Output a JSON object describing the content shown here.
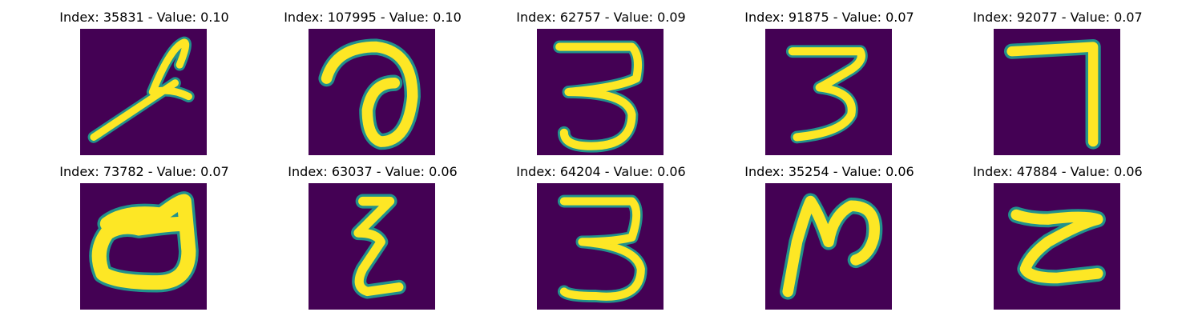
{
  "panels": [
    {
      "title": "Index: 35831 - Value: 0.10",
      "glyph": "script-l-glyph"
    },
    {
      "title": "Index: 107995 - Value: 0.10",
      "glyph": "curl-loop-glyph"
    },
    {
      "title": "Index: 62757 - Value: 0.09",
      "glyph": "digit-3-glyph"
    },
    {
      "title": "Index: 91875 - Value: 0.07",
      "glyph": "digit-3-glyph"
    },
    {
      "title": "Index: 92077 - Value: 0.07",
      "glyph": "digit-7-glyph"
    },
    {
      "title": "Index: 73782 - Value: 0.07",
      "glyph": "letter-d-glyph"
    },
    {
      "title": "Index: 63037 - Value: 0.06",
      "glyph": "zigzag-glyph"
    },
    {
      "title": "Index: 64204 - Value: 0.06",
      "glyph": "digit-3-glyph"
    },
    {
      "title": "Index: 35254 - Value: 0.06",
      "glyph": "n-shape-glyph"
    },
    {
      "title": "Index: 47884 - Value: 0.06",
      "glyph": "letter-z-glyph"
    }
  ],
  "colors": {
    "background": "#440154",
    "stroke": "#fde725",
    "edge": "#21918c"
  }
}
